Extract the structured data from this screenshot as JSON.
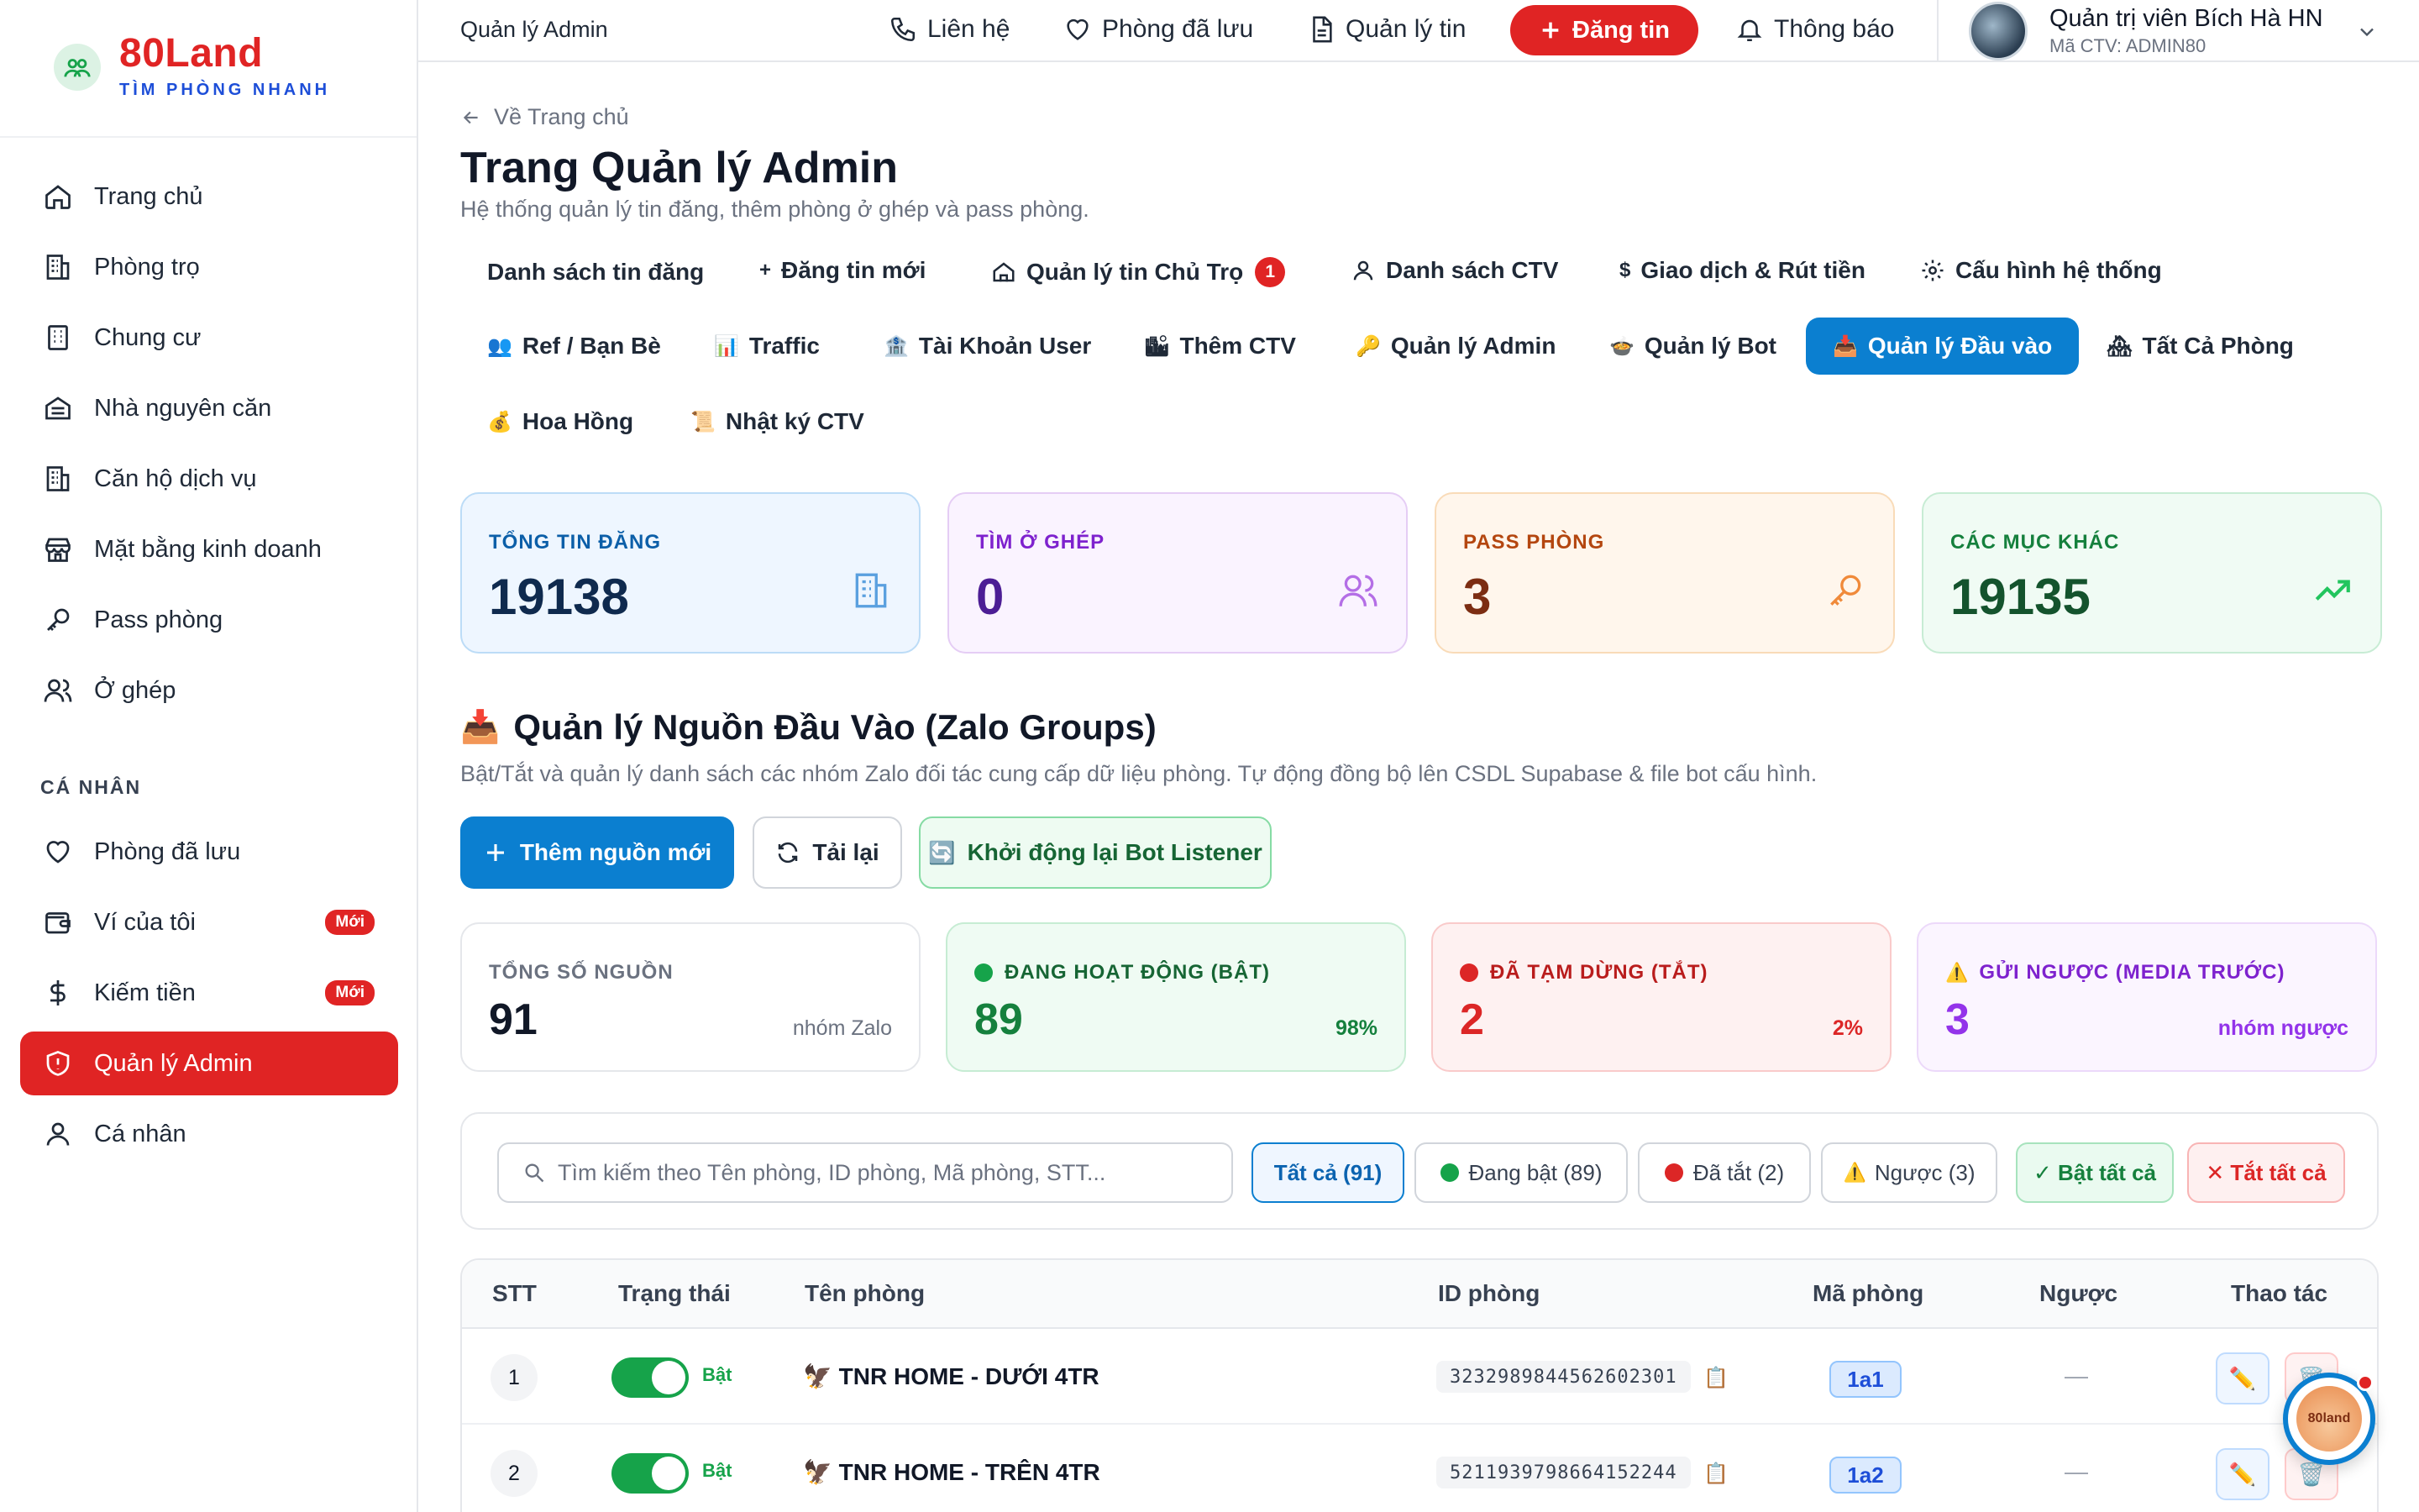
{
  "brand": {
    "name": "80Land",
    "tagline": "TÌM PHÒNG NHANH"
  },
  "sidebar": {
    "items": [
      {
        "label": "Trang chủ",
        "icon": "home-icon"
      },
      {
        "label": "Phòng trọ",
        "icon": "building-icon"
      },
      {
        "label": "Chung cư",
        "icon": "apartment-icon"
      },
      {
        "label": "Nhà nguyên căn",
        "icon": "house-icon"
      },
      {
        "label": "Căn hộ dịch vụ",
        "icon": "building-icon"
      },
      {
        "label": "Mặt bằng kinh doanh",
        "icon": "store-icon"
      },
      {
        "label": "Pass phòng",
        "icon": "key-icon"
      },
      {
        "label": "Ở ghép",
        "icon": "users-icon"
      }
    ],
    "personal_label": "CÁ NHÂN",
    "personal_items": [
      {
        "label": "Phòng đã lưu",
        "icon": "heart-icon"
      },
      {
        "label": "Ví của tôi",
        "icon": "wallet-icon",
        "badge": "Mới"
      },
      {
        "label": "Kiếm tiền",
        "icon": "dollar-icon",
        "badge": "Mới"
      },
      {
        "label": "Quản lý Admin",
        "icon": "shield-icon",
        "active": true
      },
      {
        "label": "Cá nhân",
        "icon": "user-icon"
      }
    ]
  },
  "topbar": {
    "breadcrumb": "Quản lý Admin",
    "contact": "Liên hệ",
    "saved": "Phòng đã lưu",
    "manage_posts": "Quản lý tin",
    "post_button": "Đăng tin",
    "notifications": "Thông báo",
    "user_name": "Quản trị viên Bích Hà HN",
    "user_code": "Mã CTV: ADMIN80"
  },
  "page": {
    "back": "Về Trang chủ",
    "title": "Trang Quản lý Admin",
    "subtitle": "Hệ thống quản lý tin đăng, thêm phòng ở ghép và pass phòng."
  },
  "tabs": [
    {
      "label": "Danh sách tin đăng"
    },
    {
      "label": "Đăng tin mới",
      "icon": "+"
    },
    {
      "label": "Quản lý tin Chủ Trọ",
      "badge": "1"
    },
    {
      "label": "Danh sách CTV"
    },
    {
      "label": "Giao dịch & Rút tiền",
      "icon": "$"
    },
    {
      "label": "Cấu hình hệ thống"
    },
    {
      "label": "Ref / Bạn Bè",
      "icon": "👥"
    },
    {
      "label": "Traffic",
      "icon": "📊"
    },
    {
      "label": "Tài Khoản User",
      "icon": "🏦"
    },
    {
      "label": "Thêm CTV",
      "icon": "🏙"
    },
    {
      "label": "Quản lý Admin",
      "icon": "🔑"
    },
    {
      "label": "Quản lý Bot",
      "icon": "🍲"
    },
    {
      "label": "Quản lý Đầu vào",
      "icon": "📥",
      "active": true
    },
    {
      "label": "Tất Cả Phòng",
      "icon": "🏘"
    },
    {
      "label": "Hoa Hồng",
      "icon": "💰"
    },
    {
      "label": "Nhật ký CTV",
      "icon": "📜"
    }
  ],
  "stats": [
    {
      "label": "TỔNG TIN ĐĂNG",
      "value": "19138"
    },
    {
      "label": "TÌM Ở GHÉP",
      "value": "0"
    },
    {
      "label": "PASS PHÒNG",
      "value": "3"
    },
    {
      "label": "CÁC MỤC KHÁC",
      "value": "19135"
    }
  ],
  "section": {
    "emoji": "📥",
    "title": "Quản lý Nguồn Đầu Vào (Zalo Groups)",
    "description": "Bật/Tắt và quản lý danh sách các nhóm Zalo đối tác cung cấp dữ liệu phòng. Tự động đồng bộ lên CSDL Supabase & file bot cấu hình."
  },
  "actions": {
    "add": "Thêm nguồn mới",
    "reload": "Tải lại",
    "restart": "Khởi động lại Bot Listener"
  },
  "source_stats": [
    {
      "label": "TỔNG SỐ NGUỒN",
      "value": "91",
      "note": "nhóm Zalo"
    },
    {
      "label": "ĐANG HOẠT ĐỘNG (BẬT)",
      "value": "89",
      "note": "98%"
    },
    {
      "label": "ĐÃ TẠM DỪNG (TẮT)",
      "value": "2",
      "note": "2%"
    },
    {
      "label": "GỬI NGƯỢC (MEDIA TRƯỚC)",
      "value": "3",
      "note": "nhóm ngược"
    }
  ],
  "filters": {
    "search_placeholder": "Tìm kiếm theo Tên phòng, ID phòng, Mã phòng, STT...",
    "all": "Tất cả (91)",
    "on": "Đang bật (89)",
    "off": "Đã tắt (2)",
    "reverse": "Ngược (3)",
    "enable_all": "✓ Bật tất cả",
    "disable_all": "✕ Tắt tất cả"
  },
  "table": {
    "headers": [
      "STT",
      "Trạng thái",
      "Tên phòng",
      "ID phòng",
      "Mã phòng",
      "Ngược",
      "Thao tác"
    ],
    "rows": [
      {
        "stt": "1",
        "status": "Bật",
        "name": "🦅 TNR HOME - DƯỚI 4TR",
        "id": "3232989844562602301",
        "code": "1a1",
        "reverse": "—"
      },
      {
        "stt": "2",
        "status": "Bật",
        "name": "🦅 TNR HOME - TRÊN 4TR",
        "id": "5211939798664152244",
        "code": "1a2",
        "reverse": "—"
      }
    ]
  },
  "float_bot": "80land",
  "colors": {
    "brand_red": "#e02424",
    "primary_blue": "#0b7fd0",
    "success_green": "#16a34a"
  }
}
